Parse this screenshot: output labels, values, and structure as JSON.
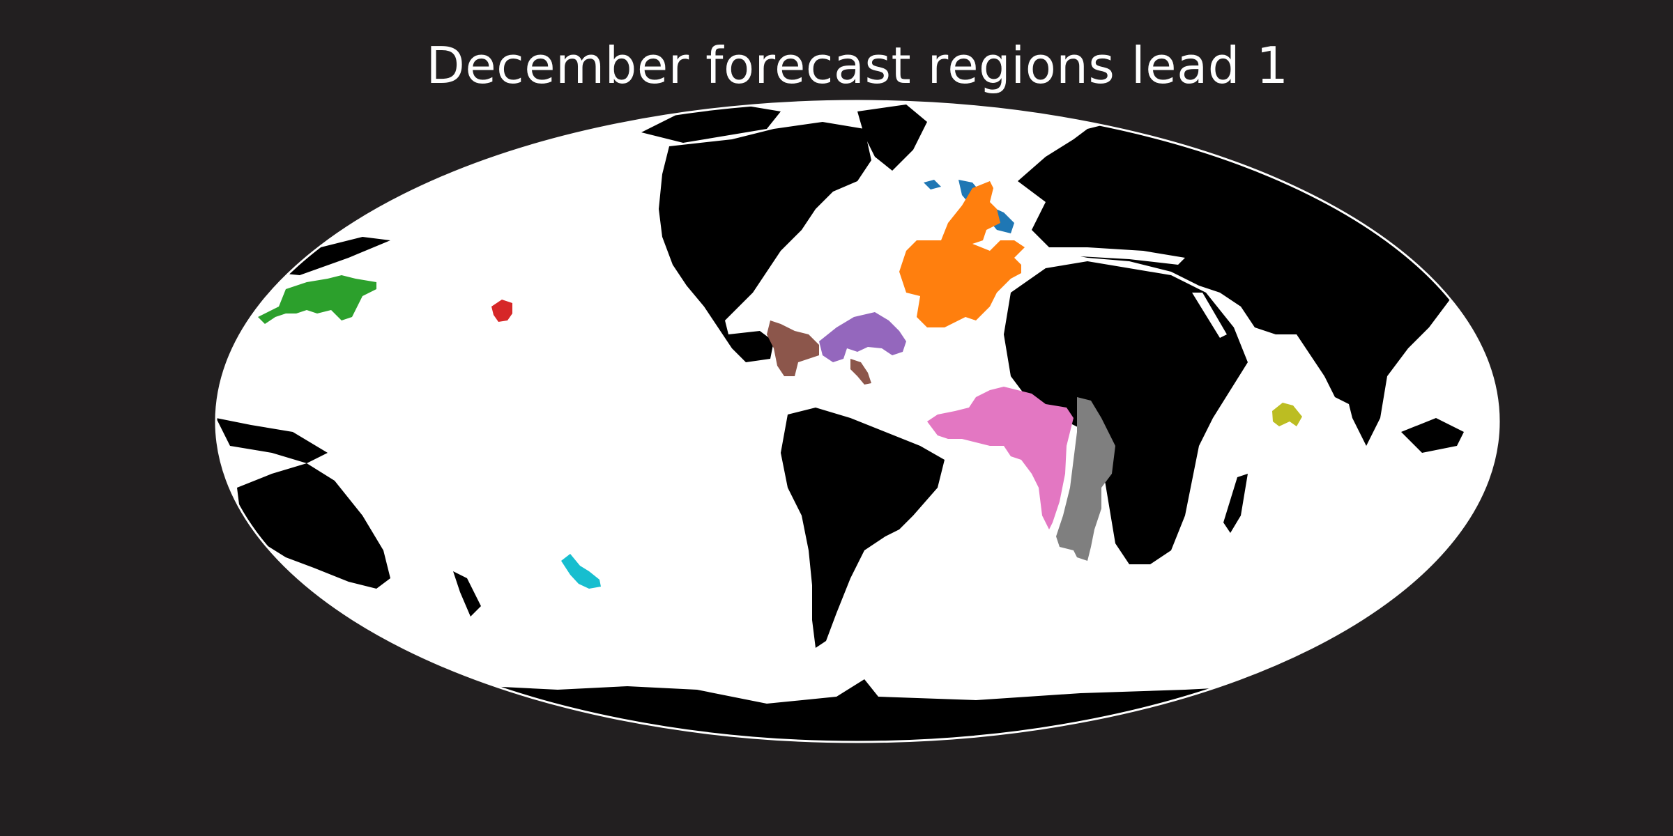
{
  "title": "December forecast regions lead 1",
  "colors": {
    "background": "#221f20",
    "ocean": "#ffffff",
    "land": "#000000",
    "border": "#ffffff",
    "title": "#ffffff"
  },
  "projection": "mollweide",
  "regions": [
    {
      "id": "north-atlantic-north",
      "color": "#1f77b4"
    },
    {
      "id": "north-atlantic-subtropical",
      "color": "#ff7f0e"
    },
    {
      "id": "north-pacific-west",
      "color": "#2ca02c"
    },
    {
      "id": "north-pacific-central",
      "color": "#d62728"
    },
    {
      "id": "tropical-atlantic-west",
      "color": "#9467bd"
    },
    {
      "id": "caribbean",
      "color": "#8c564b"
    },
    {
      "id": "tropical-south-atlantic",
      "color": "#e377c2"
    },
    {
      "id": "south-atlantic-east",
      "color": "#7f7f7f"
    },
    {
      "id": "indian-ocean",
      "color": "#bcbd22"
    },
    {
      "id": "south-pacific",
      "color": "#17becf"
    }
  ]
}
